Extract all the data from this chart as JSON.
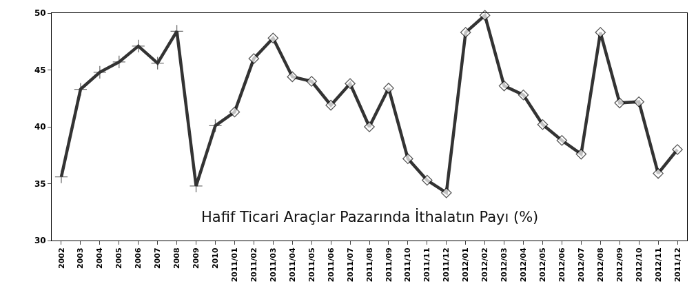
{
  "chart_data": {
    "type": "line",
    "title": "Hafif Ticari Araçlar Pazarında İthalatın Payı (%)",
    "categories": [
      "2002",
      "2003",
      "2004",
      "2005",
      "2006",
      "2007",
      "2008",
      "2009",
      "2010",
      "2011/01",
      "2011/02",
      "2011/03",
      "2011/04",
      "2011/05",
      "2011/06",
      "2011/07",
      "2011/08",
      "2011/09",
      "2011/10",
      "2011/11",
      "2011/12",
      "2012/01",
      "2012/02",
      "2012/03",
      "2012/04",
      "2012/05",
      "2012/06",
      "2012/07",
      "2012/08",
      "2012/09",
      "2012/10",
      "2012/11",
      "2011/12"
    ],
    "series": [
      {
        "color": "#333333",
        "values": [
          35.6,
          43.3,
          44.8,
          45.7,
          47.1,
          45.6,
          48.4,
          34.8,
          40.1,
          41.3,
          46.0,
          47.8,
          44.4,
          44.0,
          41.9,
          43.8,
          40.0,
          43.4,
          37.2,
          35.3,
          34.2,
          48.3,
          49.8,
          43.6,
          42.8,
          40.2,
          38.8,
          37.6,
          48.3,
          42.1,
          42.2,
          35.9,
          38.0
        ],
        "marker": [
          "cross",
          "cross",
          "cross",
          "cross",
          "cross",
          "cross",
          "cross",
          "cross",
          "cross",
          "diamond",
          "diamond",
          "diamond",
          "diamond",
          "diamond",
          "diamond",
          "diamond",
          "diamond",
          "diamond",
          "diamond",
          "diamond",
          "diamond",
          "diamond",
          "diamond",
          "diamond",
          "diamond",
          "diamond",
          "diamond",
          "diamond",
          "diamond",
          "diamond",
          "diamond",
          "diamond",
          "diamond"
        ]
      }
    ],
    "ylim": [
      30,
      50
    ],
    "yticks": [
      30,
      35,
      40,
      45,
      50
    ],
    "grid": false,
    "legend": false,
    "line_style": "solid"
  }
}
